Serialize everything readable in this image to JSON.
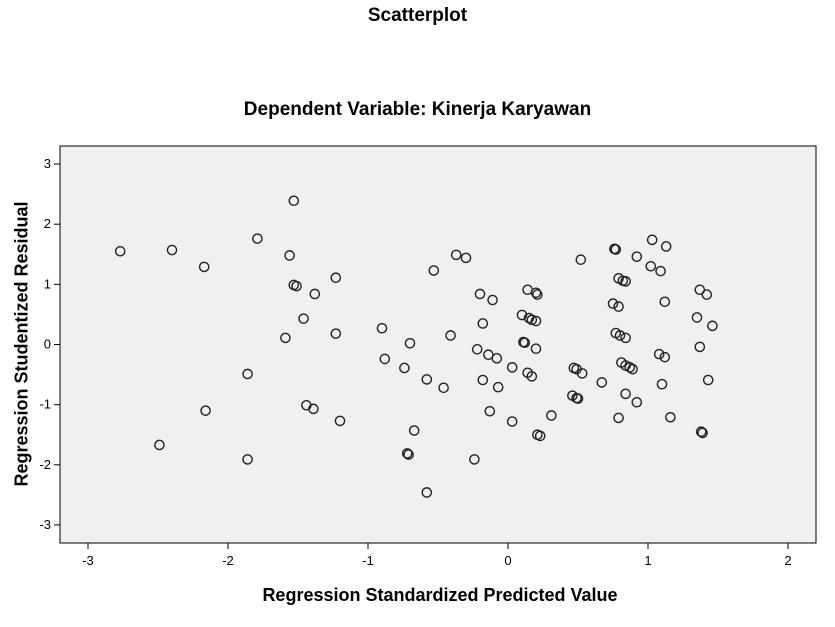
{
  "chart_data": {
    "type": "scatter",
    "title": "Scatterplot",
    "subtitle": "Dependent Variable: Kinerja Karyawan",
    "xlabel": "Regression Standardized Predicted Value",
    "ylabel": "Regression Studentized Residual",
    "xlim": [
      -3.2,
      2.2
    ],
    "ylim": [
      -3.3,
      3.3
    ],
    "xticks": [
      -3,
      -2,
      -1,
      0,
      1,
      2
    ],
    "yticks": [
      -3,
      -2,
      -1,
      0,
      1,
      2,
      3
    ],
    "grid": false,
    "marker": "open-circle",
    "plot_background": "#f0f0f0",
    "series": [
      {
        "points": [
          [
            -2.77,
            1.55
          ],
          [
            -2.4,
            1.57
          ],
          [
            -2.17,
            1.29
          ],
          [
            -1.79,
            1.76
          ],
          [
            -1.53,
            2.39
          ],
          [
            -1.56,
            1.48
          ],
          [
            -1.53,
            0.99
          ],
          [
            -1.51,
            0.97
          ],
          [
            -1.38,
            0.84
          ],
          [
            -1.23,
            1.11
          ],
          [
            -1.46,
            0.43
          ],
          [
            -1.59,
            0.11
          ],
          [
            -1.23,
            0.18
          ],
          [
            -2.49,
            -1.67
          ],
          [
            -2.16,
            -1.1
          ],
          [
            -1.86,
            -0.49
          ],
          [
            -1.86,
            -1.91
          ],
          [
            -1.44,
            -1.01
          ],
          [
            -1.39,
            -1.07
          ],
          [
            -1.2,
            -1.27
          ],
          [
            -0.9,
            0.27
          ],
          [
            -0.88,
            -0.24
          ],
          [
            -0.74,
            -0.39
          ],
          [
            -0.7,
            0.02
          ],
          [
            -0.58,
            -0.58
          ],
          [
            -0.53,
            1.23
          ],
          [
            -0.46,
            -0.72
          ],
          [
            -0.41,
            0.15
          ],
          [
            -0.37,
            1.49
          ],
          [
            -0.3,
            1.44
          ],
          [
            -0.67,
            -1.43
          ],
          [
            -0.72,
            -1.81
          ],
          [
            -0.71,
            -1.83
          ],
          [
            -0.58,
            -2.46
          ],
          [
            -0.24,
            -1.91
          ],
          [
            -0.2,
            0.84
          ],
          [
            -0.11,
            0.74
          ],
          [
            -0.18,
            0.35
          ],
          [
            -0.22,
            -0.08
          ],
          [
            -0.14,
            -0.17
          ],
          [
            -0.08,
            -0.23
          ],
          [
            -0.18,
            -0.59
          ],
          [
            -0.07,
            -0.71
          ],
          [
            -0.13,
            -1.11
          ],
          [
            0.03,
            -0.38
          ],
          [
            0.03,
            -1.28
          ],
          [
            0.14,
            0.91
          ],
          [
            0.2,
            0.86
          ],
          [
            0.21,
            0.83
          ],
          [
            0.1,
            0.49
          ],
          [
            0.15,
            0.44
          ],
          [
            0.17,
            0.41
          ],
          [
            0.2,
            0.39
          ],
          [
            0.11,
            0.04
          ],
          [
            0.12,
            0.03
          ],
          [
            0.2,
            -0.07
          ],
          [
            0.14,
            -0.47
          ],
          [
            0.17,
            -0.53
          ],
          [
            0.21,
            -1.5
          ],
          [
            0.23,
            -1.52
          ],
          [
            0.31,
            -1.18
          ],
          [
            0.47,
            -0.39
          ],
          [
            0.49,
            -0.41
          ],
          [
            0.53,
            -0.48
          ],
          [
            0.46,
            -0.85
          ],
          [
            0.49,
            -0.89
          ],
          [
            0.5,
            -0.9
          ],
          [
            0.52,
            1.41
          ],
          [
            0.67,
            -0.63
          ],
          [
            0.75,
            0.68
          ],
          [
            0.76,
            1.59
          ],
          [
            0.77,
            1.58
          ],
          [
            0.79,
            1.1
          ],
          [
            0.82,
            1.06
          ],
          [
            0.84,
            1.05
          ],
          [
            0.79,
            0.63
          ],
          [
            0.77,
            0.19
          ],
          [
            0.8,
            0.15
          ],
          [
            0.84,
            0.11
          ],
          [
            0.81,
            -0.3
          ],
          [
            0.84,
            -0.35
          ],
          [
            0.87,
            -0.38
          ],
          [
            0.89,
            -0.41
          ],
          [
            0.84,
            -0.82
          ],
          [
            0.92,
            -0.96
          ],
          [
            0.79,
            -1.22
          ],
          [
            0.92,
            1.46
          ],
          [
            1.03,
            1.74
          ],
          [
            1.13,
            1.63
          ],
          [
            1.02,
            1.3
          ],
          [
            1.09,
            1.22
          ],
          [
            1.12,
            0.71
          ],
          [
            1.08,
            -0.16
          ],
          [
            1.12,
            -0.21
          ],
          [
            1.1,
            -0.66
          ],
          [
            1.16,
            -1.21
          ],
          [
            1.35,
            0.45
          ],
          [
            1.37,
            0.91
          ],
          [
            1.42,
            0.83
          ],
          [
            1.46,
            0.31
          ],
          [
            1.37,
            -0.04
          ],
          [
            1.43,
            -0.59
          ],
          [
            1.38,
            -1.45
          ],
          [
            1.39,
            -1.47
          ]
        ]
      }
    ]
  }
}
